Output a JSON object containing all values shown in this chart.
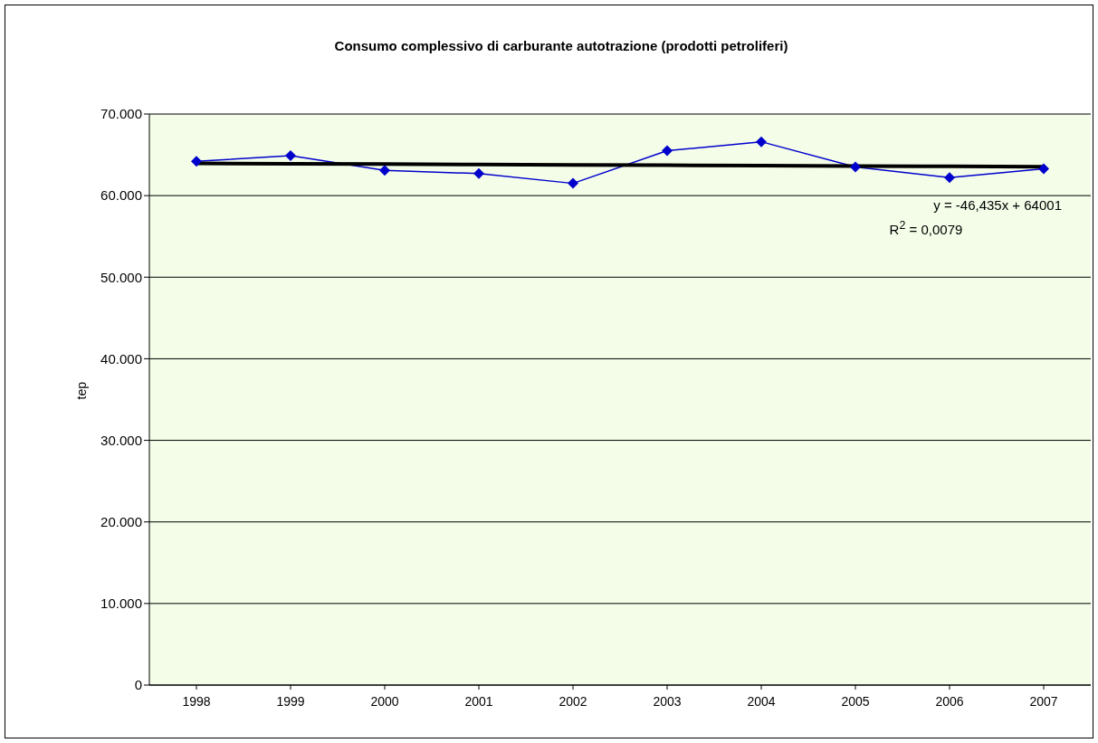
{
  "chart_data": {
    "type": "line",
    "title": "Consumo complessivo di carburante autotrazione (prodotti petroliferi)",
    "ylabel": "tep",
    "categories": [
      "1998",
      "1999",
      "2000",
      "2001",
      "2002",
      "2003",
      "2004",
      "2005",
      "2006",
      "2007"
    ],
    "series": [
      {
        "color": "#0000cc",
        "values": [
          64200,
          64900,
          63100,
          62700,
          61500,
          65500,
          66600,
          63500,
          62200,
          63300
        ],
        "marker": "diamond"
      },
      {
        "type": "line",
        "color": "#000000",
        "values": [
          63950,
          63910,
          63860,
          63820,
          63770,
          63720,
          63680,
          63630,
          63580,
          63540
        ],
        "marker": "none"
      }
    ],
    "ylim": [
      0,
      70000
    ],
    "yticks": [
      0,
      {
        "value": 10000,
        "label": "10.000"
      },
      {
        "value": 20000,
        "label": "20.000"
      },
      {
        "value": 30000,
        "label": "30.000"
      },
      {
        "value": 40000,
        "label": "40.000"
      },
      {
        "value": 50000,
        "label": "50.000"
      },
      {
        "value": 60000,
        "label": "60.000"
      },
      {
        "value": 70000,
        "label": "70.000"
      }
    ],
    "grid": "y",
    "annotations": [
      "y = -46,435x + 64001",
      "R$^{2}$ = 0,0079"
    ]
  }
}
